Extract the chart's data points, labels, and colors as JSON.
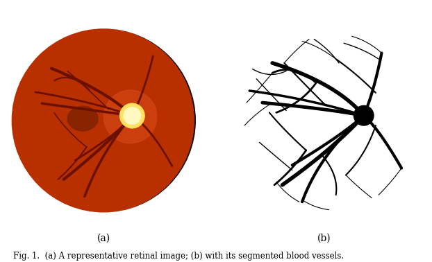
{
  "figure_width": 6.22,
  "figure_height": 3.78,
  "background_color": "#ffffff",
  "label_a": "(a)",
  "label_b": "(b)",
  "caption": "Fig. 1.  (a) A representative retinal image; (b) with its segmented blood vessels.",
  "label_fontsize": 10,
  "caption_fontsize": 8.5,
  "retina_bg_color": "#0a0500",
  "retina_colors": [
    [
      0.97,
      "#b83000"
    ],
    [
      0.85,
      "#c83808"
    ],
    [
      0.7,
      "#d04010"
    ],
    [
      0.55,
      "#c83808"
    ],
    [
      0.4,
      "#b83000"
    ]
  ],
  "macula_color": "#7a2000",
  "disc_color1": "#FFE060",
  "disc_color2": "#FFF8C0",
  "vessel_color_left": "#6B1000",
  "vessels_left": [
    [
      0.3,
      0.05,
      0.05,
      0.3,
      -0.55,
      0.55,
      3.0
    ],
    [
      0.3,
      0.05,
      -0.05,
      0.1,
      -0.65,
      0.18,
      2.5
    ],
    [
      0.3,
      0.05,
      0.08,
      -0.22,
      -0.42,
      -0.62,
      3.0
    ],
    [
      0.3,
      0.05,
      0.18,
      -0.12,
      -0.3,
      -0.42,
      2.0
    ],
    [
      0.3,
      0.05,
      0.42,
      0.28,
      0.52,
      0.68,
      2.0
    ],
    [
      0.3,
      0.05,
      0.5,
      -0.08,
      0.72,
      -0.48,
      2.0
    ],
    [
      0.3,
      0.05,
      -0.02,
      -0.32,
      -0.2,
      -0.8,
      2.5
    ],
    [
      0.3,
      0.05,
      -0.12,
      0.2,
      -0.72,
      0.3,
      2.0
    ],
    [
      -0.15,
      0.32,
      -0.35,
      0.52,
      -0.52,
      0.42,
      1.5
    ],
    [
      0.05,
      0.12,
      -0.15,
      0.32,
      -0.38,
      0.52,
      1.2
    ],
    [
      -0.18,
      -0.28,
      -0.38,
      -0.12,
      -0.52,
      0.08,
      1.2
    ],
    [
      -0.18,
      -0.28,
      -0.32,
      -0.48,
      -0.48,
      -0.62,
      1.5
    ]
  ],
  "seg_vessel_color": "#000000",
  "vessels_right": [
    [
      0.4,
      0.05,
      0.12,
      0.38,
      -0.52,
      0.58,
      4.0
    ],
    [
      0.4,
      0.05,
      0.02,
      0.12,
      -0.62,
      0.18,
      3.5
    ],
    [
      0.4,
      0.05,
      0.1,
      -0.28,
      -0.42,
      -0.65,
      4.0
    ],
    [
      0.4,
      0.05,
      0.18,
      -0.15,
      -0.32,
      -0.45,
      3.0
    ],
    [
      0.4,
      0.05,
      0.5,
      0.28,
      0.58,
      0.68,
      3.0
    ],
    [
      0.4,
      0.05,
      0.55,
      -0.08,
      0.78,
      -0.48,
      3.0
    ],
    [
      0.4,
      0.05,
      -0.05,
      -0.35,
      -0.22,
      -0.82,
      3.0
    ],
    [
      0.4,
      0.05,
      -0.15,
      0.22,
      -0.75,
      0.3,
      2.5
    ],
    [
      -0.08,
      0.38,
      -0.3,
      0.58,
      -0.52,
      0.48,
      2.0
    ],
    [
      -0.08,
      0.38,
      -0.22,
      0.18,
      -0.48,
      0.08,
      2.0
    ],
    [
      0.02,
      0.15,
      -0.18,
      0.35,
      -0.4,
      0.58,
      1.5
    ],
    [
      -0.18,
      -0.3,
      -0.4,
      -0.1,
      -0.55,
      0.08,
      1.5
    ],
    [
      -0.18,
      -0.3,
      -0.32,
      -0.5,
      -0.5,
      -0.65,
      2.0
    ],
    [
      0.52,
      0.28,
      0.32,
      0.48,
      0.12,
      0.62,
      1.5
    ],
    [
      0.52,
      -0.05,
      0.42,
      -0.35,
      0.22,
      -0.55,
      1.5
    ],
    [
      -0.02,
      -0.35,
      0.15,
      -0.55,
      0.12,
      -0.75,
      1.5
    ],
    [
      -0.38,
      0.5,
      -0.55,
      0.42,
      -0.72,
      0.52,
      1.0
    ],
    [
      -0.38,
      0.1,
      -0.55,
      0.28,
      -0.68,
      0.42,
      1.0
    ],
    [
      -0.32,
      -0.5,
      -0.5,
      -0.35,
      -0.65,
      -0.22,
      1.0
    ],
    [
      0.15,
      0.58,
      0.05,
      0.72,
      -0.1,
      0.82,
      1.0
    ],
    [
      0.55,
      0.62,
      0.4,
      0.72,
      0.2,
      0.78,
      1.0
    ],
    [
      -0.52,
      0.48,
      -0.65,
      0.32,
      -0.78,
      0.18,
      0.8
    ],
    [
      -0.52,
      0.18,
      -0.68,
      0.08,
      -0.8,
      -0.05,
      0.8
    ],
    [
      0.58,
      0.68,
      0.45,
      0.8,
      0.28,
      0.85,
      0.8
    ],
    [
      0.78,
      -0.48,
      0.68,
      -0.62,
      0.55,
      -0.75,
      0.8
    ],
    [
      -0.22,
      -0.8,
      -0.1,
      -0.88,
      0.05,
      -0.9,
      0.8
    ],
    [
      0.12,
      0.62,
      -0.05,
      0.75,
      -0.22,
      0.8,
      0.8
    ],
    [
      -0.4,
      0.58,
      -0.28,
      0.72,
      -0.15,
      0.82,
      0.8
    ],
    [
      0.22,
      -0.55,
      0.35,
      -0.68,
      0.48,
      -0.78,
      0.8
    ],
    [
      -0.48,
      -0.62,
      -0.38,
      -0.75,
      -0.25,
      -0.82,
      0.8
    ]
  ]
}
